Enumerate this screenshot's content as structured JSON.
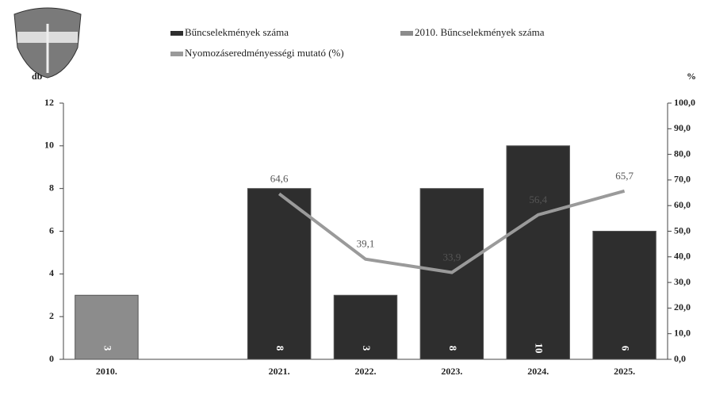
{
  "chart_data": {
    "type": "bar",
    "categories": [
      "2010.",
      null,
      "2021.",
      "2022.",
      "2023.",
      "2024.",
      "2025."
    ],
    "y_label": "db",
    "y2_label": "%",
    "ylim": [
      0,
      12
    ],
    "yticks": [
      0,
      2,
      4,
      6,
      8,
      10,
      12
    ],
    "y2lim": [
      0,
      100
    ],
    "y2ticks": [
      {
        "value": 0,
        "label": "0,0"
      },
      {
        "value": 10,
        "label": "10,0"
      },
      {
        "value": 20,
        "label": "20,0"
      },
      {
        "value": 30,
        "label": "30,0"
      },
      {
        "value": 40,
        "label": "40,0"
      },
      {
        "value": 50,
        "label": "50,0"
      },
      {
        "value": 60,
        "label": "60,0"
      },
      {
        "value": 70,
        "label": "70,0"
      },
      {
        "value": 80,
        "label": "80,0"
      },
      {
        "value": 90,
        "label": "90,0"
      },
      {
        "value": 100,
        "label": "100,0"
      }
    ],
    "series": [
      {
        "name": "Bűncselekmények száma",
        "type": "bar",
        "color": "#2e2e2e",
        "values": [
          null,
          null,
          8,
          3,
          8,
          10,
          6
        ]
      },
      {
        "name": "2010. Bűncselekmények száma",
        "type": "bar",
        "color": "#8c8c8c",
        "values": [
          3,
          null,
          null,
          null,
          null,
          null,
          null
        ]
      },
      {
        "name": "Nyomozáseredményességi mutató (%)",
        "type": "line",
        "axis": "y2",
        "color": "#9a9a9a",
        "values": [
          null,
          null,
          64.6,
          39.1,
          33.9,
          56.4,
          65.7
        ],
        "value_labels": [
          null,
          null,
          "64,6",
          "39,1",
          "33,9",
          "56,4",
          "65,7"
        ]
      }
    ]
  }
}
